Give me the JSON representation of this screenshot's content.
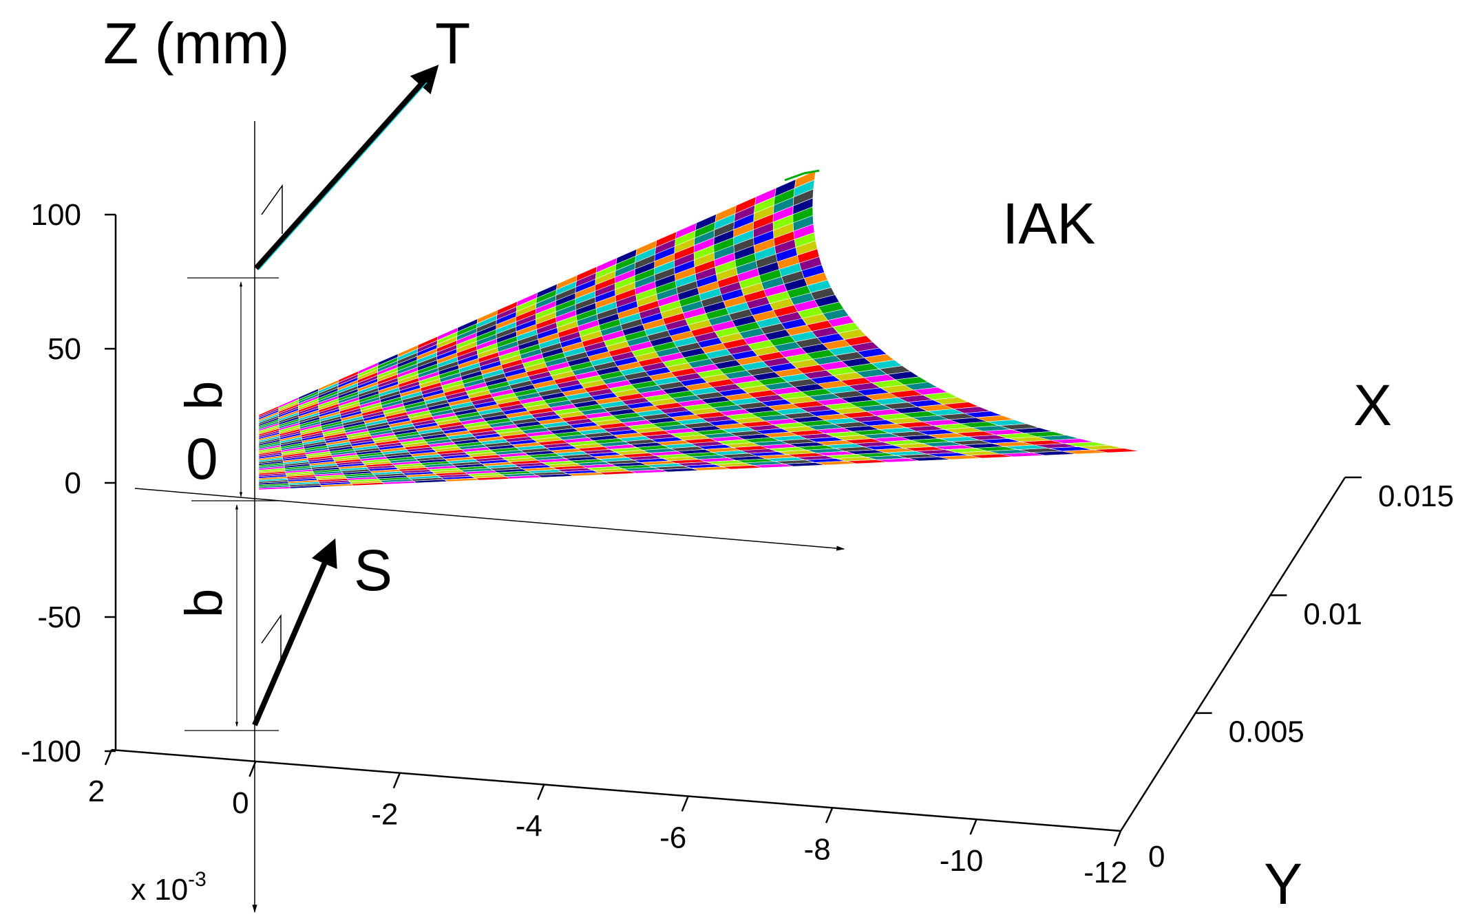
{
  "chart_data": {
    "type": "surface3d",
    "title": "",
    "annotation": "IAK",
    "z_axis": {
      "label": "Z (mm)",
      "range": [
        -100,
        100
      ],
      "ticks": [
        {
          "value": 100,
          "label": "100"
        },
        {
          "value": 50,
          "label": "50"
        },
        {
          "value": 0,
          "label": "0"
        },
        {
          "value": -50,
          "label": "-50"
        },
        {
          "value": -100,
          "label": "-100"
        }
      ]
    },
    "y_axis": {
      "label": "Y",
      "multiplier_label": "x 10",
      "multiplier_exponent": "-3",
      "ticks": [
        {
          "value": 2,
          "label": "2"
        },
        {
          "value": 0,
          "label": "0"
        },
        {
          "value": -2,
          "label": "-2"
        },
        {
          "value": -4,
          "label": "-4"
        },
        {
          "value": -6,
          "label": "-6"
        },
        {
          "value": -8,
          "label": "-8"
        },
        {
          "value": -10,
          "label": "-10"
        },
        {
          "value": -12,
          "label": "-12"
        }
      ]
    },
    "x_axis": {
      "label": "X",
      "range": [
        0,
        0.015
      ],
      "ticks": [
        {
          "value": 0,
          "label": "0"
        },
        {
          "value": 0.005,
          "label": "0.005"
        },
        {
          "value": 0.01,
          "label": "0.01"
        },
        {
          "value": 0.015,
          "label": "0.015"
        }
      ]
    },
    "markers": {
      "T": "T",
      "S": "S",
      "origin": "0",
      "b_upper": "b",
      "b_lower": "b"
    },
    "surface_colors": [
      "#ff0000",
      "#00aa00",
      "#0000ff",
      "#ff00ff",
      "#00cccc",
      "#cccc00",
      "#000088",
      "#880088",
      "#008888",
      "#ff8800",
      "#88ff00",
      "#444444"
    ]
  }
}
